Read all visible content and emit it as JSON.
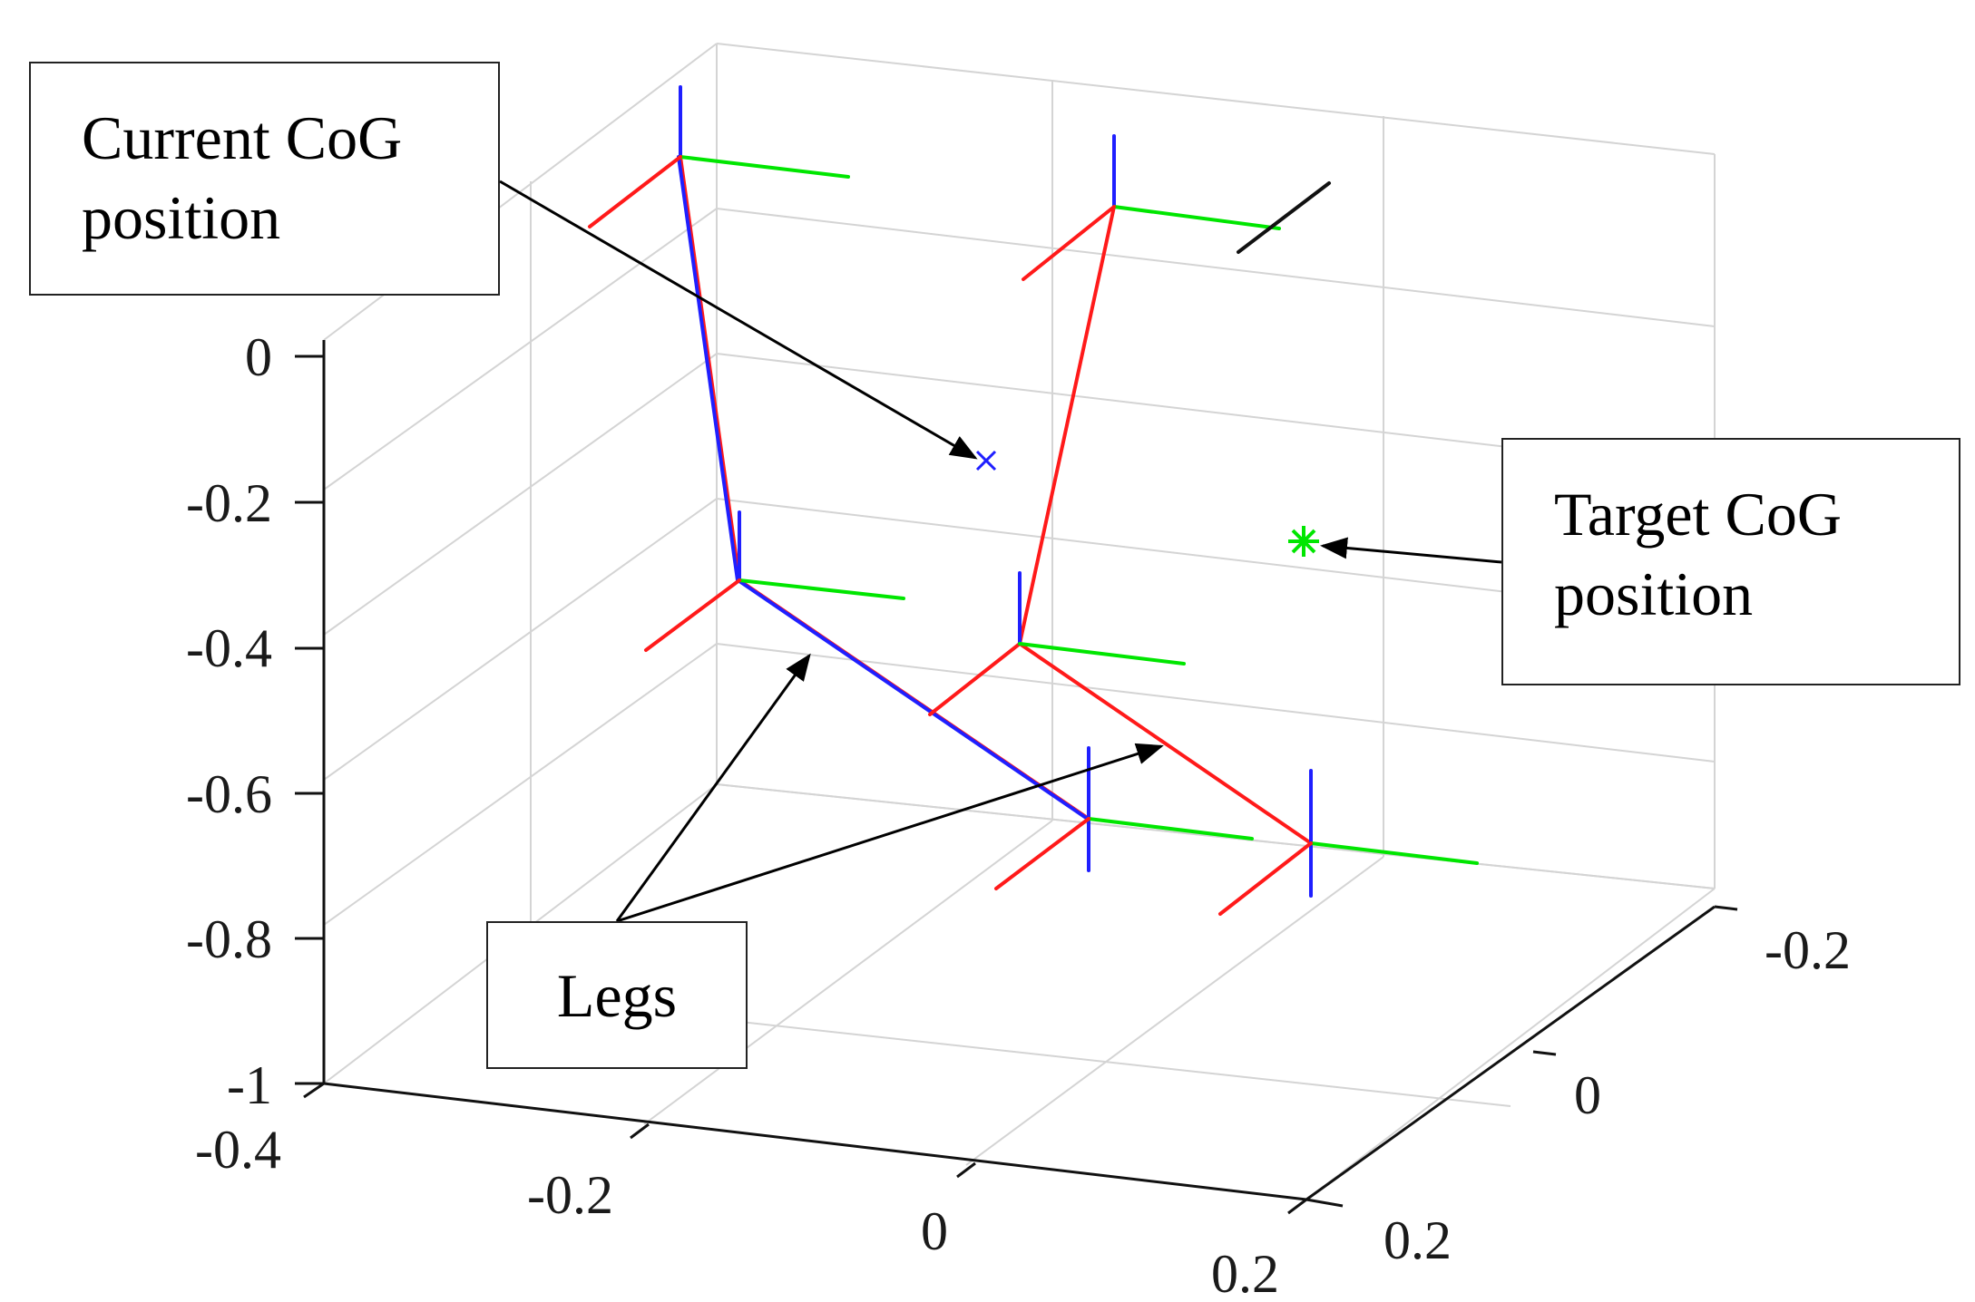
{
  "chart_data": {
    "type": "3d-line",
    "title": "",
    "xlabel": "",
    "ylabel": "",
    "zlabel": "",
    "x_ticks": [
      "-0.4",
      "-0.2",
      "0",
      "0.2"
    ],
    "y_ticks": [
      "-0.2",
      "0",
      "0.2"
    ],
    "z_ticks": [
      "0",
      "-0.2",
      "-0.4",
      "-0.6",
      "-0.8",
      "-1"
    ],
    "grid": true,
    "colors": {
      "blue": "#1f1fff",
      "red": "#ff1a1a",
      "green": "#00e600",
      "black": "#111111"
    },
    "annotations": [
      {
        "id": "current",
        "lines": [
          "Current CoG",
          "position"
        ]
      },
      {
        "id": "target",
        "lines": [
          "Target CoG",
          "position"
        ]
      },
      {
        "id": "legs",
        "lines": [
          "Legs"
        ]
      }
    ],
    "markers": [
      {
        "name": "current-cog",
        "symbol": "x",
        "color": "blue"
      },
      {
        "name": "target-cog",
        "symbol": "*",
        "color": "green"
      }
    ],
    "legs": [
      "blue",
      "red"
    ]
  }
}
